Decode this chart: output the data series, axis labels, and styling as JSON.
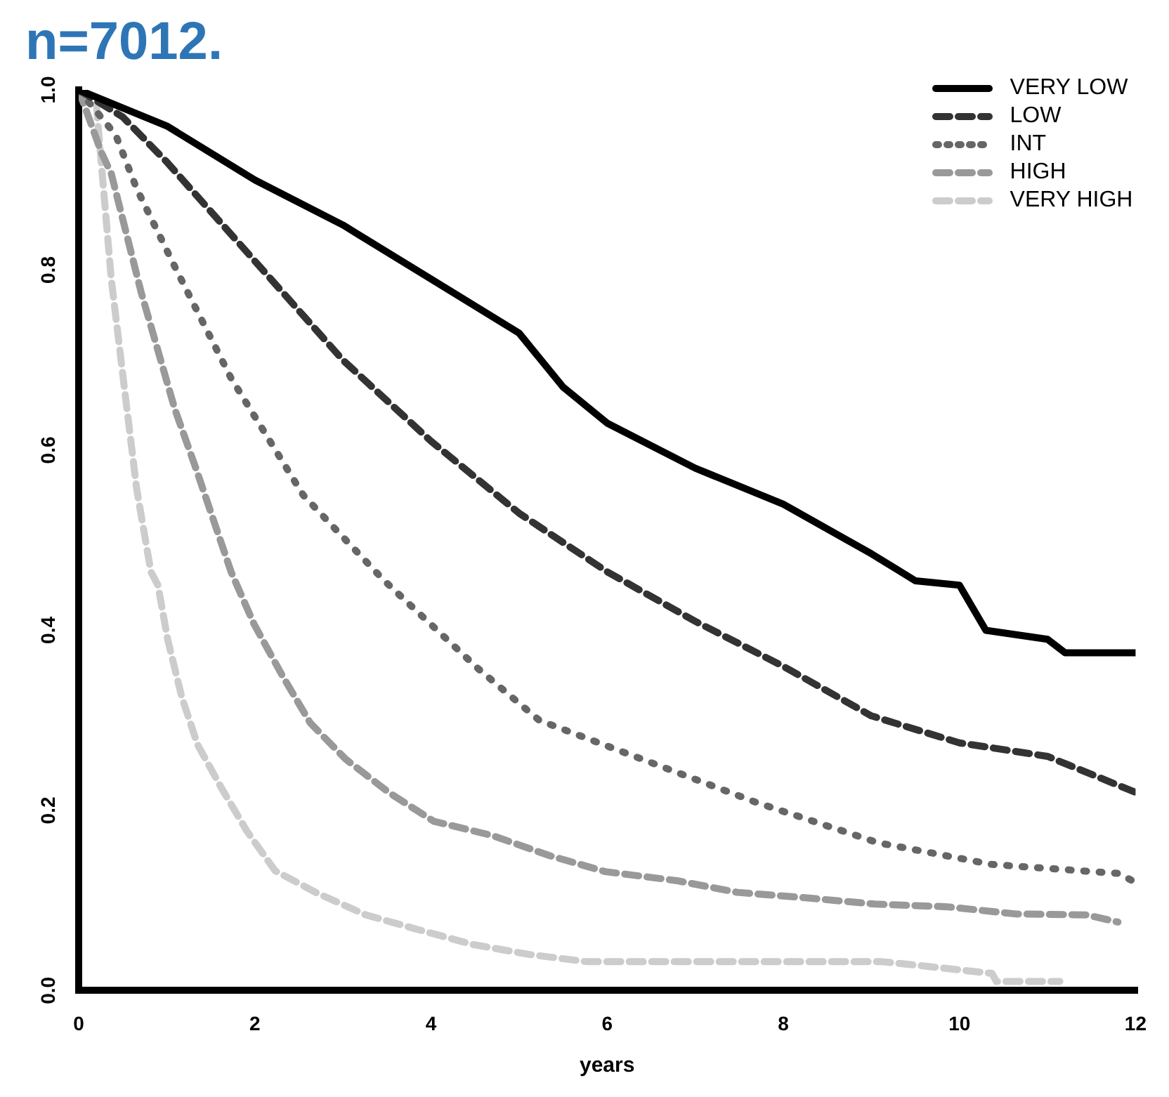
{
  "chart_data": {
    "type": "line",
    "title": "n=7012.",
    "xlabel": "years",
    "xlim": [
      0,
      12
    ],
    "xticks": [
      0,
      2,
      4,
      6,
      8,
      10,
      12
    ],
    "ylim": [
      0,
      1
    ],
    "yticks": [
      {
        "value": 0,
        "label": "0.0"
      },
      0.2,
      0.4,
      0.6,
      0.8,
      {
        "value": 1,
        "label": "1.0"
      }
    ],
    "grid": false,
    "legend": "top right",
    "marker": "none",
    "series": [
      {
        "name": "VERY LOW",
        "color": "#000000",
        "line_style": "solid",
        "x": [
          0,
          1,
          2,
          3,
          4,
          5,
          5.5,
          6,
          7,
          8,
          9,
          9.5,
          10,
          10.3,
          11,
          11.2,
          12
        ],
        "values": [
          1,
          0.96,
          0.9,
          0.85,
          0.79,
          0.73,
          0.67,
          0.63,
          0.58,
          0.54,
          0.485,
          0.455,
          0.45,
          0.4,
          0.39,
          0.375,
          0.375
        ]
      },
      {
        "name": "LOW",
        "color": "#333333",
        "line_style": "dashed",
        "x": [
          0,
          0.5,
          1,
          2,
          3,
          4,
          5,
          6,
          7,
          8,
          9,
          10,
          11,
          12
        ],
        "values": [
          1,
          0.97,
          0.92,
          0.81,
          0.7,
          0.61,
          0.53,
          0.465,
          0.41,
          0.36,
          0.305,
          0.275,
          0.26,
          0.22
        ]
      },
      {
        "name": "INT",
        "color": "#666666",
        "line_style": "dotted",
        "x": [
          0,
          0.42,
          0.66,
          1.11,
          1.73,
          2.55,
          3.47,
          4.54,
          5.23,
          7.69,
          9.08,
          10.37,
          11.81,
          12
        ],
        "values": [
          1,
          0.95,
          0.89,
          0.8,
          0.68,
          0.55,
          0.455,
          0.357,
          0.3,
          0.209,
          0.164,
          0.14,
          0.13,
          0.12
        ]
      },
      {
        "name": "HIGH",
        "color": "#999999",
        "line_style": "dashed",
        "x": [
          0,
          0.26,
          0.37,
          0.71,
          1.09,
          1.33,
          1.73,
          1.99,
          2.31,
          2.63,
          3.03,
          3.52,
          4.03,
          4.7,
          5.34,
          5.98,
          6.79,
          7.48,
          8.25,
          9.04,
          9.86,
          10.64,
          11.44,
          11.8
        ],
        "values": [
          1,
          0.93,
          0.907,
          0.775,
          0.646,
          0.58,
          0.465,
          0.407,
          0.35,
          0.297,
          0.257,
          0.22,
          0.188,
          0.172,
          0.15,
          0.132,
          0.122,
          0.109,
          0.103,
          0.096,
          0.093,
          0.085,
          0.084,
          0.076
        ]
      },
      {
        "name": "VERY HIGH",
        "color": "#cccccc",
        "line_style": "dashed",
        "x": [
          0,
          0.2,
          0.26,
          0.37,
          0.53,
          0.66,
          0.82,
          0.9,
          1.01,
          1.17,
          1.35,
          1.62,
          1.91,
          2.23,
          2.71,
          3.26,
          3.84,
          4.48,
          5.12,
          5.77,
          9.13,
          9.62,
          10.37,
          10.42,
          11.14
        ],
        "values": [
          1,
          0.984,
          0.915,
          0.79,
          0.66,
          0.556,
          0.465,
          0.45,
          0.39,
          0.326,
          0.273,
          0.225,
          0.177,
          0.133,
          0.108,
          0.084,
          0.068,
          0.051,
          0.04,
          0.032,
          0.032,
          0.027,
          0.019,
          0.01,
          0.01
        ]
      }
    ]
  }
}
